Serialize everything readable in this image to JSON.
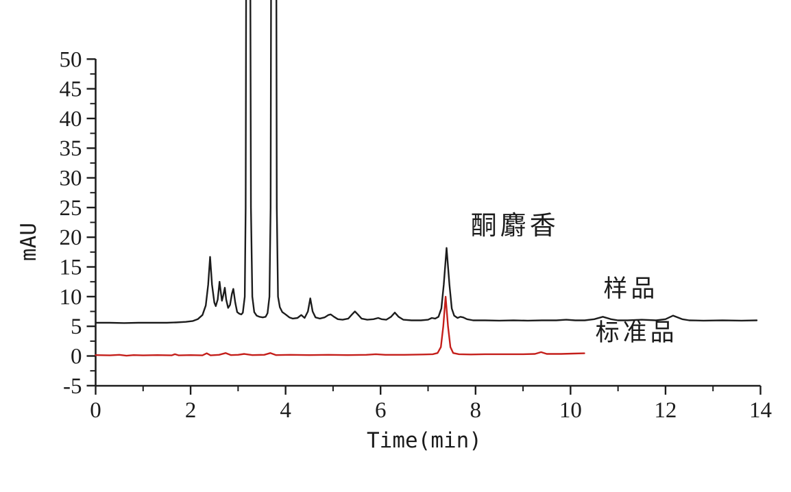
{
  "chart_data": {
    "type": "line",
    "title": "",
    "xlabel": "Time(min)",
    "ylabel": "mAU",
    "xlim": [
      0,
      14
    ],
    "ylim": [
      -5,
      50
    ],
    "grid": false,
    "background": "#ffffff",
    "axis_color": "#1c1c1c",
    "x_major_ticks": [
      0,
      2,
      4,
      6,
      8,
      10,
      12,
      14
    ],
    "x_minor_ticks": [
      1,
      3,
      5,
      7,
      9,
      11,
      13
    ],
    "y_major_ticks": [
      -5,
      0,
      5,
      10,
      15,
      20,
      25,
      30,
      35,
      40,
      45,
      50
    ],
    "y_minor_ticks": [
      -2.5,
      2.5,
      7.5,
      12.5,
      17.5,
      22.5,
      27.5,
      32.5,
      37.5,
      42.5,
      47.5
    ],
    "series": [
      {
        "name": "样品",
        "color": "#1c1c1c",
        "stroke_width": 2.4,
        "points": [
          [
            0,
            5.6
          ],
          [
            0.3,
            5.6
          ],
          [
            0.6,
            5.55
          ],
          [
            0.9,
            5.6
          ],
          [
            1.2,
            5.6
          ],
          [
            1.5,
            5.6
          ],
          [
            1.7,
            5.65
          ],
          [
            1.9,
            5.75
          ],
          [
            2.05,
            5.9
          ],
          [
            2.15,
            6.2
          ],
          [
            2.25,
            6.9
          ],
          [
            2.32,
            8.5
          ],
          [
            2.37,
            12.0
          ],
          [
            2.41,
            16.7
          ],
          [
            2.45,
            12.0
          ],
          [
            2.5,
            9.0
          ],
          [
            2.53,
            8.4
          ],
          [
            2.57,
            9.5
          ],
          [
            2.61,
            12.5
          ],
          [
            2.64,
            10.5
          ],
          [
            2.66,
            9.3
          ],
          [
            2.69,
            10.3
          ],
          [
            2.72,
            11.5
          ],
          [
            2.75,
            9.5
          ],
          [
            2.79,
            8.1
          ],
          [
            2.83,
            8.6
          ],
          [
            2.87,
            10.5
          ],
          [
            2.9,
            11.3
          ],
          [
            2.94,
            9.0
          ],
          [
            2.98,
            7.4
          ],
          [
            3.03,
            7.1
          ],
          [
            3.07,
            7.0
          ],
          [
            3.1,
            7.3
          ],
          [
            3.14,
            10.0
          ],
          [
            3.16,
            25.0
          ],
          [
            3.175,
            85.0
          ],
          [
            3.25,
            85.0
          ],
          [
            3.27,
            25.0
          ],
          [
            3.3,
            10.0
          ],
          [
            3.34,
            7.4
          ],
          [
            3.39,
            6.8
          ],
          [
            3.45,
            6.6
          ],
          [
            3.52,
            6.5
          ],
          [
            3.58,
            6.6
          ],
          [
            3.62,
            7.2
          ],
          [
            3.66,
            10.0
          ],
          [
            3.685,
            25.0
          ],
          [
            3.7,
            85.0
          ],
          [
            3.8,
            85.0
          ],
          [
            3.815,
            25.0
          ],
          [
            3.84,
            10.0
          ],
          [
            3.88,
            8.2
          ],
          [
            3.93,
            7.4
          ],
          [
            4.0,
            7.0
          ],
          [
            4.08,
            6.5
          ],
          [
            4.15,
            6.3
          ],
          [
            4.25,
            6.4
          ],
          [
            4.33,
            6.9
          ],
          [
            4.4,
            6.4
          ],
          [
            4.47,
            7.5
          ],
          [
            4.52,
            9.7
          ],
          [
            4.57,
            7.5
          ],
          [
            4.63,
            6.5
          ],
          [
            4.72,
            6.3
          ],
          [
            4.82,
            6.5
          ],
          [
            4.9,
            6.9
          ],
          [
            4.95,
            7.0
          ],
          [
            5.02,
            6.6
          ],
          [
            5.1,
            6.2
          ],
          [
            5.2,
            6.1
          ],
          [
            5.32,
            6.3
          ],
          [
            5.4,
            7.0
          ],
          [
            5.46,
            7.5
          ],
          [
            5.52,
            7.0
          ],
          [
            5.6,
            6.3
          ],
          [
            5.72,
            6.1
          ],
          [
            5.85,
            6.2
          ],
          [
            5.95,
            6.4
          ],
          [
            6.02,
            6.2
          ],
          [
            6.12,
            6.1
          ],
          [
            6.22,
            6.6
          ],
          [
            6.3,
            7.3
          ],
          [
            6.38,
            6.6
          ],
          [
            6.48,
            6.1
          ],
          [
            6.65,
            6.0
          ],
          [
            6.85,
            6.0
          ],
          [
            7.0,
            6.1
          ],
          [
            7.08,
            6.4
          ],
          [
            7.15,
            6.3
          ],
          [
            7.22,
            6.6
          ],
          [
            7.28,
            8.0
          ],
          [
            7.33,
            12.0
          ],
          [
            7.39,
            18.2
          ],
          [
            7.45,
            12.0
          ],
          [
            7.5,
            8.0
          ],
          [
            7.55,
            6.8
          ],
          [
            7.62,
            6.4
          ],
          [
            7.68,
            6.6
          ],
          [
            7.74,
            6.5
          ],
          [
            7.82,
            6.2
          ],
          [
            7.95,
            6.0
          ],
          [
            8.2,
            6.0
          ],
          [
            8.5,
            5.95
          ],
          [
            8.8,
            6.0
          ],
          [
            9.1,
            5.95
          ],
          [
            9.4,
            6.0
          ],
          [
            9.7,
            6.0
          ],
          [
            9.91,
            6.1
          ],
          [
            10.1,
            6.0
          ],
          [
            10.3,
            6.0
          ],
          [
            10.5,
            6.2
          ],
          [
            10.68,
            6.6
          ],
          [
            10.85,
            6.2
          ],
          [
            11.0,
            6.0
          ],
          [
            11.2,
            6.0
          ],
          [
            11.5,
            6.1
          ],
          [
            11.8,
            6.0
          ],
          [
            12.0,
            6.2
          ],
          [
            12.16,
            6.8
          ],
          [
            12.35,
            6.2
          ],
          [
            12.5,
            6.0
          ],
          [
            12.8,
            5.95
          ],
          [
            13.2,
            6.0
          ],
          [
            13.6,
            5.95
          ],
          [
            13.92,
            6.0
          ]
        ]
      },
      {
        "name": "标准品",
        "color": "#c41e1a",
        "stroke_width": 2.4,
        "points": [
          [
            0,
            0.15
          ],
          [
            0.3,
            0.1
          ],
          [
            0.5,
            0.2
          ],
          [
            0.65,
            0.05
          ],
          [
            0.8,
            0.15
          ],
          [
            1.0,
            0.1
          ],
          [
            1.3,
            0.15
          ],
          [
            1.6,
            0.1
          ],
          [
            1.67,
            0.3
          ],
          [
            1.75,
            0.1
          ],
          [
            2.0,
            0.15
          ],
          [
            2.25,
            0.1
          ],
          [
            2.34,
            0.45
          ],
          [
            2.42,
            0.1
          ],
          [
            2.6,
            0.2
          ],
          [
            2.74,
            0.5
          ],
          [
            2.85,
            0.15
          ],
          [
            3.0,
            0.2
          ],
          [
            3.13,
            0.35
          ],
          [
            3.3,
            0.15
          ],
          [
            3.55,
            0.2
          ],
          [
            3.68,
            0.5
          ],
          [
            3.8,
            0.15
          ],
          [
            4.1,
            0.2
          ],
          [
            4.5,
            0.15
          ],
          [
            4.9,
            0.2
          ],
          [
            5.3,
            0.15
          ],
          [
            5.7,
            0.2
          ],
          [
            5.9,
            0.3
          ],
          [
            6.1,
            0.2
          ],
          [
            6.5,
            0.2
          ],
          [
            6.9,
            0.25
          ],
          [
            7.1,
            0.3
          ],
          [
            7.2,
            0.5
          ],
          [
            7.27,
            1.5
          ],
          [
            7.32,
            5.0
          ],
          [
            7.37,
            10.0
          ],
          [
            7.42,
            5.0
          ],
          [
            7.47,
            1.5
          ],
          [
            7.53,
            0.5
          ],
          [
            7.65,
            0.3
          ],
          [
            7.9,
            0.25
          ],
          [
            8.2,
            0.3
          ],
          [
            8.6,
            0.3
          ],
          [
            9.0,
            0.3
          ],
          [
            9.25,
            0.35
          ],
          [
            9.38,
            0.65
          ],
          [
            9.5,
            0.35
          ],
          [
            9.8,
            0.35
          ],
          [
            10.05,
            0.4
          ],
          [
            10.29,
            0.45
          ]
        ]
      }
    ],
    "annotations": [
      {
        "text": "酮麝香",
        "t": 8.83,
        "mau": 20.5,
        "style": "anno-main",
        "anchor": "middle"
      },
      {
        "text": "样品",
        "t": 11.27,
        "mau": 10.0,
        "style": "anno-side",
        "anchor": "middle"
      },
      {
        "text": "标准品",
        "t": 11.39,
        "mau": 2.6,
        "style": "anno-side",
        "anchor": "middle"
      }
    ]
  }
}
